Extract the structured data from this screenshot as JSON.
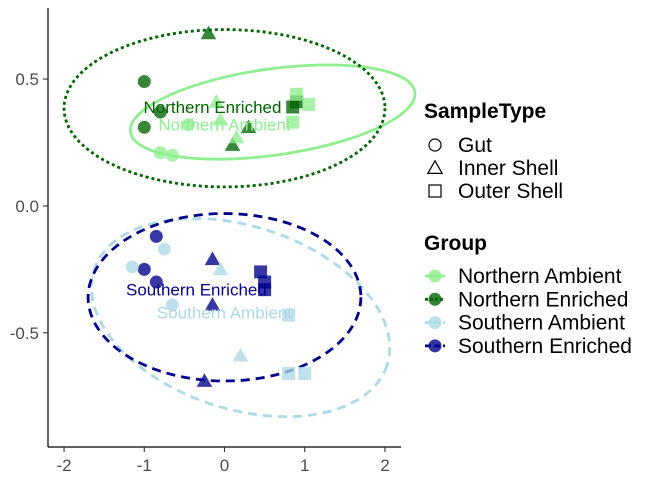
{
  "chart_data": {
    "type": "scatter",
    "xlim": [
      -2.2,
      2.2
    ],
    "ylim": [
      -0.95,
      0.78
    ],
    "xticks": [
      -2,
      -1,
      0,
      1,
      2
    ],
    "yticks": [
      0.5,
      0.0,
      -0.5
    ],
    "xtick_labels": [
      "-2",
      "-1",
      "0",
      "1",
      "2"
    ],
    "ytick_labels": [
      "0.5",
      "0.0",
      "-0.5"
    ],
    "grid": false,
    "legend_position": "right",
    "groups": [
      {
        "name": "Northern Ambient",
        "color": "#90EE90",
        "line": "solid",
        "label_text": "Northern Ambient",
        "label_pos": [
          0.0,
          0.32
        ],
        "ellipse": {
          "cx": 0.6,
          "cy": 0.37,
          "rx": 1.79,
          "ry": 0.17,
          "angle_deg": 8
        }
      },
      {
        "name": "Northern Enriched",
        "color": "#006400",
        "line": "dotted",
        "label_text": "Northern Enriched",
        "label_pos": [
          -0.15,
          0.39
        ],
        "ellipse": {
          "cx": 0.0,
          "cy": 0.385,
          "rx": 2.0,
          "ry": 0.31,
          "angle_deg": 0
        }
      },
      {
        "name": "Southern Ambient",
        "color": "#ADD8E6",
        "line": "dashed",
        "label_text": "Southern Ambient",
        "label_pos": [
          0.0,
          -0.42
        ],
        "ellipse": {
          "cx": 0.2,
          "cy": -0.44,
          "rx": 1.92,
          "ry": 0.36,
          "angle_deg": -18
        }
      },
      {
        "name": "Southern Enriched",
        "color": "#00008B",
        "line": "dashed",
        "label_text": "Southern Enriched",
        "label_pos": [
          -0.35,
          -0.33
        ],
        "ellipse": {
          "cx": 0.0,
          "cy": -0.36,
          "rx": 1.7,
          "ry": 0.33,
          "angle_deg": 0
        }
      }
    ],
    "shapes": [
      {
        "name": "Gut",
        "marker": "circle"
      },
      {
        "name": "Inner Shell",
        "marker": "triangle"
      },
      {
        "name": "Outer Shell",
        "marker": "square"
      }
    ],
    "points": [
      {
        "x": -1.0,
        "y": 0.49,
        "group": "Northern Enriched",
        "shape": "Gut"
      },
      {
        "x": -0.8,
        "y": 0.37,
        "group": "Northern Enriched",
        "shape": "Gut"
      },
      {
        "x": -1.0,
        "y": 0.31,
        "group": "Northern Enriched",
        "shape": "Gut"
      },
      {
        "x": -0.2,
        "y": 0.68,
        "group": "Northern Enriched",
        "shape": "Inner Shell"
      },
      {
        "x": 0.1,
        "y": 0.24,
        "group": "Northern Enriched",
        "shape": "Inner Shell"
      },
      {
        "x": 0.3,
        "y": 0.31,
        "group": "Northern Enriched",
        "shape": "Inner Shell"
      },
      {
        "x": 0.85,
        "y": 0.39,
        "group": "Northern Enriched",
        "shape": "Outer Shell"
      },
      {
        "x": 0.9,
        "y": 0.41,
        "group": "Northern Enriched",
        "shape": "Outer Shell"
      },
      {
        "x": -0.8,
        "y": 0.21,
        "group": "Northern Ambient",
        "shape": "Gut"
      },
      {
        "x": -0.65,
        "y": 0.2,
        "group": "Northern Ambient",
        "shape": "Gut"
      },
      {
        "x": -0.45,
        "y": 0.32,
        "group": "Northern Ambient",
        "shape": "Gut"
      },
      {
        "x": -0.1,
        "y": 0.41,
        "group": "Northern Ambient",
        "shape": "Inner Shell"
      },
      {
        "x": -0.05,
        "y": 0.34,
        "group": "Northern Ambient",
        "shape": "Inner Shell"
      },
      {
        "x": 0.15,
        "y": 0.27,
        "group": "Northern Ambient",
        "shape": "Inner Shell"
      },
      {
        "x": 0.85,
        "y": 0.33,
        "group": "Northern Ambient",
        "shape": "Outer Shell"
      },
      {
        "x": 0.9,
        "y": 0.44,
        "group": "Northern Ambient",
        "shape": "Outer Shell"
      },
      {
        "x": 1.05,
        "y": 0.4,
        "group": "Northern Ambient",
        "shape": "Outer Shell"
      },
      {
        "x": -0.85,
        "y": -0.12,
        "group": "Southern Enriched",
        "shape": "Gut"
      },
      {
        "x": -1.0,
        "y": -0.25,
        "group": "Southern Enriched",
        "shape": "Gut"
      },
      {
        "x": -0.85,
        "y": -0.3,
        "group": "Southern Enriched",
        "shape": "Gut"
      },
      {
        "x": -0.15,
        "y": -0.21,
        "group": "Southern Enriched",
        "shape": "Inner Shell"
      },
      {
        "x": -0.15,
        "y": -0.39,
        "group": "Southern Enriched",
        "shape": "Inner Shell"
      },
      {
        "x": -0.25,
        "y": -0.69,
        "group": "Southern Enriched",
        "shape": "Inner Shell"
      },
      {
        "x": 0.45,
        "y": -0.26,
        "group": "Southern Enriched",
        "shape": "Outer Shell"
      },
      {
        "x": 0.5,
        "y": -0.3,
        "group": "Southern Enriched",
        "shape": "Outer Shell"
      },
      {
        "x": 0.5,
        "y": -0.33,
        "group": "Southern Enriched",
        "shape": "Outer Shell"
      },
      {
        "x": -1.15,
        "y": -0.24,
        "group": "Southern Ambient",
        "shape": "Gut"
      },
      {
        "x": -0.75,
        "y": -0.17,
        "group": "Southern Ambient",
        "shape": "Gut"
      },
      {
        "x": -0.65,
        "y": -0.39,
        "group": "Southern Ambient",
        "shape": "Gut"
      },
      {
        "x": -0.05,
        "y": -0.25,
        "group": "Southern Ambient",
        "shape": "Inner Shell"
      },
      {
        "x": 0.2,
        "y": -0.59,
        "group": "Southern Ambient",
        "shape": "Inner Shell"
      },
      {
        "x": 0.8,
        "y": -0.43,
        "group": "Southern Ambient",
        "shape": "Outer Shell"
      },
      {
        "x": 0.8,
        "y": -0.66,
        "group": "Southern Ambient",
        "shape": "Outer Shell"
      },
      {
        "x": 1.0,
        "y": -0.66,
        "group": "Southern Ambient",
        "shape": "Outer Shell"
      }
    ]
  },
  "legend": {
    "shape_title": "SampleType",
    "shape_items": [
      "Gut",
      "Inner Shell",
      "Outer Shell"
    ],
    "group_title": "Group",
    "group_items": [
      "Northern Ambient",
      "Northern Enriched",
      "Southern Ambient",
      "Southern Enriched"
    ]
  }
}
